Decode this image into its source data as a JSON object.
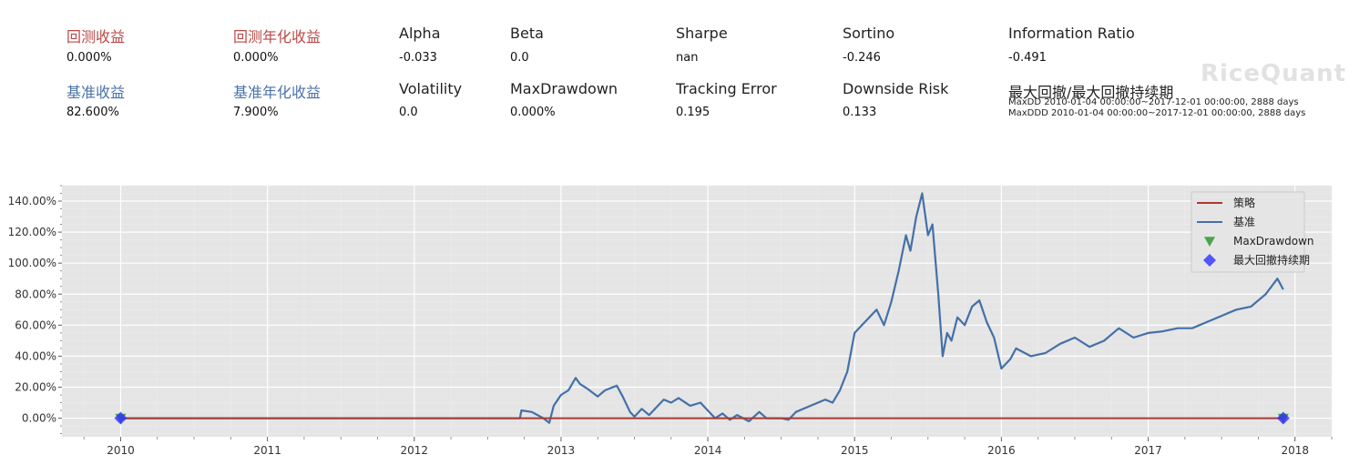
{
  "metrics": {
    "row1": [
      {
        "label": "回测收益",
        "value": "0.000%"
      },
      {
        "label": "回测年化收益",
        "value": "0.000%"
      },
      {
        "label": "Alpha",
        "value": "-0.033"
      },
      {
        "label": "Beta",
        "value": "0.0"
      },
      {
        "label": "Sharpe",
        "value": "nan"
      },
      {
        "label": "Sortino",
        "value": "-0.246"
      },
      {
        "label": "Information Ratio",
        "value": "-0.491"
      }
    ],
    "row2": [
      {
        "label": "基准收益",
        "value": "82.600%"
      },
      {
        "label": "基准年化收益",
        "value": "7.900%"
      },
      {
        "label": "Volatility",
        "value": "0.0"
      },
      {
        "label": "MaxDrawdown",
        "value": "0.000%"
      },
      {
        "label": "Tracking Error",
        "value": "0.195"
      },
      {
        "label": "Downside Risk",
        "value": "0.133"
      },
      {
        "label": "最大回撤/最大回撤持续期",
        "value": ""
      }
    ],
    "maxdd_line": "MaxDD  2010-01-04 00:00:00~2017-12-01 00:00:00, 2888 days",
    "maxddd_line": "MaxDDD 2010-01-04 00:00:00~2017-12-01 00:00:00, 2888 days"
  },
  "logo": "RiceQuant",
  "colors": {
    "strategy": "#a83a33",
    "benchmark": "#4470a8",
    "maxdrawdown_marker": "#2e9a2e",
    "maxddd_marker": "#2f2fff",
    "plot_bg": "#e5e5e5",
    "grid": "#ffffff"
  },
  "chart_data": {
    "type": "line",
    "xlabel": "",
    "ylabel": "",
    "x_ticks": [
      "2010",
      "2011",
      "2012",
      "2013",
      "2014",
      "2015",
      "2016",
      "2017",
      "2018"
    ],
    "y_ticks": [
      "0.00%",
      "20.00%",
      "40.00%",
      "60.00%",
      "80.00%",
      "100.00%",
      "120.00%",
      "140.00%"
    ],
    "xlim": [
      2009.6,
      2018.25
    ],
    "ylim": [
      -12,
      150
    ],
    "grid": true,
    "legend_position": "top-right",
    "legend": [
      "策略",
      "基准",
      "MaxDrawdown",
      "最大回撤持续期"
    ],
    "series": [
      {
        "name": "策略",
        "x": [
          2010.0,
          2017.92
        ],
        "y": [
          0,
          0
        ]
      },
      {
        "name": "基准",
        "x": [
          2010.0,
          2012.72,
          2012.73,
          2012.8,
          2012.88,
          2012.92,
          2012.95,
          2013.0,
          2013.05,
          2013.1,
          2013.13,
          2013.18,
          2013.25,
          2013.3,
          2013.38,
          2013.42,
          2013.47,
          2013.5,
          2013.55,
          2013.6,
          2013.7,
          2013.75,
          2013.8,
          2013.88,
          2013.95,
          2014.05,
          2014.1,
          2014.15,
          2014.2,
          2014.28,
          2014.35,
          2014.4,
          2014.5,
          2014.55,
          2014.6,
          2014.7,
          2014.8,
          2014.85,
          2014.9,
          2014.95,
          2015.0,
          2015.05,
          2015.1,
          2015.15,
          2015.2,
          2015.25,
          2015.3,
          2015.35,
          2015.38,
          2015.42,
          2015.46,
          2015.5,
          2015.53,
          2015.57,
          2015.6,
          2015.63,
          2015.66,
          2015.7,
          2015.75,
          2015.8,
          2015.85,
          2015.9,
          2015.95,
          2016.0,
          2016.03,
          2016.06,
          2016.1,
          2016.2,
          2016.3,
          2016.4,
          2016.5,
          2016.6,
          2016.7,
          2016.8,
          2016.9,
          2017.0,
          2017.1,
          2017.2,
          2017.3,
          2017.4,
          2017.5,
          2017.6,
          2017.7,
          2017.8,
          2017.88,
          2017.92
        ],
        "y": [
          0,
          0,
          5,
          4,
          0,
          -3,
          8,
          15,
          18,
          26,
          22,
          19,
          14,
          18,
          21,
          14,
          4,
          1,
          6,
          2,
          12,
          10,
          13,
          8,
          10,
          0,
          3,
          -1,
          2,
          -2,
          4,
          0,
          0,
          -1,
          4,
          8,
          12,
          10,
          18,
          30,
          55,
          60,
          65,
          70,
          60,
          75,
          95,
          118,
          108,
          130,
          145,
          118,
          125,
          80,
          40,
          55,
          50,
          65,
          60,
          72,
          76,
          62,
          52,
          32,
          35,
          38,
          45,
          40,
          42,
          48,
          52,
          46,
          50,
          58,
          52,
          55,
          56,
          58,
          58,
          62,
          66,
          70,
          72,
          80,
          90,
          83
        ]
      }
    ],
    "markers": [
      {
        "name": "MaxDrawdown",
        "x": [
          2010.0,
          2017.92
        ],
        "y": [
          0,
          0
        ]
      },
      {
        "name": "最大回撤持续期",
        "x": [
          2010.0,
          2017.92
        ],
        "y": [
          0,
          0
        ]
      }
    ]
  }
}
